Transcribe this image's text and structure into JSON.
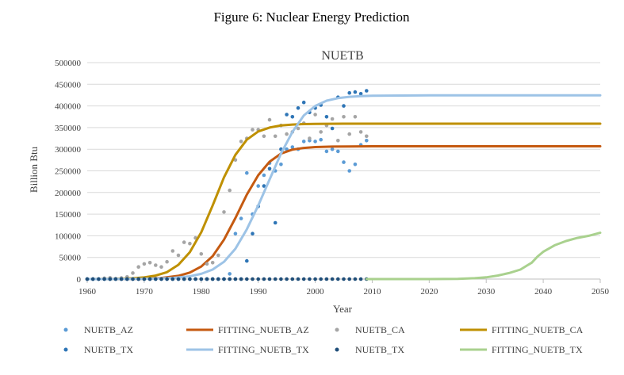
{
  "figure_caption": "Figure 6: Nuclear Energy Prediction",
  "chart_data": {
    "type": "scatter",
    "title": "NUETB",
    "xlabel": "Year",
    "ylabel": "Billion Btu",
    "xlim": [
      1960,
      2050
    ],
    "ylim": [
      0,
      500000
    ],
    "x_ticks": [
      1960,
      1970,
      1980,
      1990,
      2000,
      2010,
      2020,
      2030,
      2040,
      2050
    ],
    "y_ticks": [
      0,
      50000,
      100000,
      150000,
      200000,
      250000,
      300000,
      350000,
      400000,
      450000,
      500000
    ],
    "y_tick_labels": [
      "0",
      "50000",
      "100000",
      "150000",
      "200000",
      "250000",
      "300000",
      "350000",
      "400000",
      "450000",
      "500000"
    ],
    "grid": "horizontal",
    "legend_position": "bottom",
    "series": [
      {
        "name": "NUETB_AZ",
        "kind": "scatter",
        "color": "#5b9bd5",
        "x": [
          1960,
          1961,
          1962,
          1963,
          1964,
          1965,
          1966,
          1967,
          1968,
          1969,
          1970,
          1971,
          1972,
          1973,
          1974,
          1975,
          1976,
          1977,
          1978,
          1979,
          1980,
          1981,
          1982,
          1983,
          1984,
          1985,
          1986,
          1987,
          1988,
          1989,
          1990,
          1991,
          1992,
          1993,
          1994,
          1995,
          1996,
          1997,
          1998,
          1999,
          2000,
          2001,
          2002,
          2003,
          2004,
          2005,
          2006,
          2007,
          2008,
          2009
        ],
        "y": [
          0,
          0,
          0,
          0,
          0,
          0,
          0,
          0,
          0,
          0,
          0,
          0,
          0,
          0,
          0,
          0,
          0,
          0,
          0,
          0,
          0,
          0,
          0,
          0,
          0,
          12000,
          105000,
          140000,
          245000,
          150000,
          215000,
          240000,
          268000,
          250000,
          265000,
          300000,
          305000,
          300000,
          318000,
          320000,
          318000,
          322000,
          295000,
          300000,
          295000,
          270000,
          250000,
          265000,
          310000,
          320000
        ]
      },
      {
        "name": "FITTING_NUETB_AZ",
        "kind": "line",
        "color": "#c55a11",
        "x": [
          1960,
          1965,
          1970,
          1973,
          1976,
          1978,
          1980,
          1982,
          1984,
          1986,
          1988,
          1990,
          1992,
          1994,
          1996,
          1998,
          2000,
          2003,
          2006,
          2010,
          2020,
          2030,
          2040,
          2050
        ],
        "y": [
          0,
          100,
          800,
          2500,
          7500,
          15000,
          29000,
          53000,
          91000,
          141000,
          195000,
          240000,
          271000,
          290000,
          299000,
          303000,
          305000,
          306000,
          306500,
          306700,
          306800,
          306800,
          306800,
          306800
        ]
      },
      {
        "name": "NUETB_CA",
        "kind": "scatter",
        "color": "#a5a5a5",
        "x": [
          1960,
          1961,
          1962,
          1963,
          1964,
          1965,
          1966,
          1967,
          1968,
          1969,
          1970,
          1971,
          1972,
          1973,
          1974,
          1975,
          1976,
          1977,
          1978,
          1979,
          1980,
          1981,
          1982,
          1983,
          1984,
          1985,
          1986,
          1987,
          1988,
          1989,
          1990,
          1991,
          1992,
          1993,
          1994,
          1995,
          1996,
          1997,
          1998,
          1999,
          2000,
          2001,
          2002,
          2003,
          2004,
          2005,
          2006,
          2007,
          2008,
          2009
        ],
        "y": [
          0,
          0,
          0,
          2000,
          3000,
          1000,
          2500,
          5000,
          14000,
          28000,
          35000,
          38000,
          32000,
          28000,
          40000,
          65000,
          55000,
          85000,
          82000,
          95000,
          58000,
          35000,
          38000,
          55000,
          155000,
          205000,
          275000,
          318000,
          325000,
          345000,
          345000,
          330000,
          368000,
          330000,
          355000,
          335000,
          340000,
          348000,
          360000,
          325000,
          380000,
          340000,
          355000,
          370000,
          320000,
          375000,
          335000,
          375000,
          340000,
          330000
        ]
      },
      {
        "name": "FITTING_NUETB_CA",
        "kind": "line",
        "color": "#bf9000",
        "x": [
          1960,
          1965,
          1968,
          1970,
          1972,
          1974,
          1976,
          1978,
          1980,
          1982,
          1984,
          1986,
          1988,
          1990,
          1992,
          1994,
          1996,
          1998,
          2000,
          2005,
          2010,
          2020,
          2030,
          2040,
          2050
        ],
        "y": [
          0,
          600,
          1800,
          3800,
          8000,
          16000,
          33000,
          62000,
          108000,
          170000,
          235000,
          287000,
          322000,
          341000,
          350000,
          355000,
          357000,
          358000,
          358500,
          359000,
          359000,
          359000,
          359000,
          359000,
          359000
        ]
      },
      {
        "name": "NUETB_TX",
        "kind": "scatter",
        "color": "#2e75b6",
        "x": [
          1960,
          1961,
          1962,
          1963,
          1964,
          1965,
          1966,
          1967,
          1968,
          1969,
          1970,
          1971,
          1972,
          1973,
          1974,
          1975,
          1976,
          1977,
          1978,
          1979,
          1980,
          1981,
          1982,
          1983,
          1984,
          1985,
          1986,
          1987,
          1988,
          1989,
          1990,
          1991,
          1992,
          1993,
          1994,
          1995,
          1996,
          1997,
          1998,
          1999,
          2000,
          2001,
          2002,
          2003,
          2004,
          2005,
          2006,
          2007,
          2008,
          2009
        ],
        "y": [
          0,
          0,
          0,
          0,
          0,
          0,
          0,
          0,
          0,
          0,
          0,
          0,
          0,
          0,
          0,
          0,
          0,
          0,
          0,
          0,
          0,
          0,
          0,
          0,
          0,
          0,
          0,
          0,
          42000,
          105000,
          168000,
          215000,
          255000,
          130000,
          300000,
          380000,
          375000,
          395000,
          408000,
          385000,
          395000,
          402000,
          375000,
          348000,
          420000,
          400000,
          430000,
          432000,
          428000,
          435000
        ]
      },
      {
        "name": "FITTING_NUETB_TX",
        "kind": "line",
        "color": "#9dc3e6",
        "x": [
          1960,
          1970,
          1975,
          1978,
          1980,
          1982,
          1984,
          1986,
          1988,
          1990,
          1992,
          1994,
          1996,
          1998,
          2000,
          2002,
          2004,
          2006,
          2008,
          2010,
          2015,
          2020,
          2030,
          2040,
          2050
        ],
        "y": [
          0,
          300,
          2500,
          6500,
          12000,
          22000,
          40000,
          70000,
          115000,
          170000,
          230000,
          290000,
          340000,
          378000,
          400000,
          412000,
          418000,
          421000,
          422500,
          423500,
          424000,
          424500,
          424500,
          424500,
          424500
        ]
      },
      {
        "name": "NUETB_TX",
        "kind": "scatter",
        "color": "#1f4e79",
        "x": [
          1960,
          1961,
          1962,
          1963,
          1964,
          1965,
          1966,
          1967,
          1968,
          1969,
          1970,
          1971,
          1972,
          1973,
          1974,
          1975,
          1976,
          1977,
          1978,
          1979,
          1980,
          1981,
          1982,
          1983,
          1984,
          1985,
          1986,
          1987,
          1988,
          1989,
          1990,
          1991,
          1992,
          1993,
          1994,
          1995,
          1996,
          1997,
          1998,
          1999,
          2000,
          2001,
          2002,
          2003,
          2004,
          2005,
          2006,
          2007,
          2008,
          2009
        ],
        "y": [
          0,
          0,
          0,
          0,
          0,
          0,
          0,
          0,
          0,
          0,
          0,
          0,
          0,
          0,
          0,
          0,
          0,
          0,
          0,
          0,
          0,
          0,
          0,
          0,
          0,
          0,
          0,
          0,
          0,
          0,
          0,
          0,
          0,
          0,
          0,
          0,
          0,
          0,
          0,
          0,
          0,
          0,
          0,
          0,
          0,
          0,
          0,
          0,
          0,
          0
        ]
      },
      {
        "name": "FITTING_NUETB_TX",
        "kind": "line",
        "color": "#a9d18e",
        "x": [
          2009,
          2015,
          2020,
          2025,
          2028,
          2030,
          2032,
          2034,
          2036,
          2037,
          2038,
          2039,
          2040,
          2042,
          2044,
          2046,
          2048,
          2050
        ],
        "y": [
          0,
          0,
          0,
          500,
          2000,
          4000,
          8000,
          14000,
          22000,
          30000,
          38000,
          52000,
          63000,
          78000,
          88000,
          95000,
          100000,
          107000
        ]
      }
    ]
  }
}
